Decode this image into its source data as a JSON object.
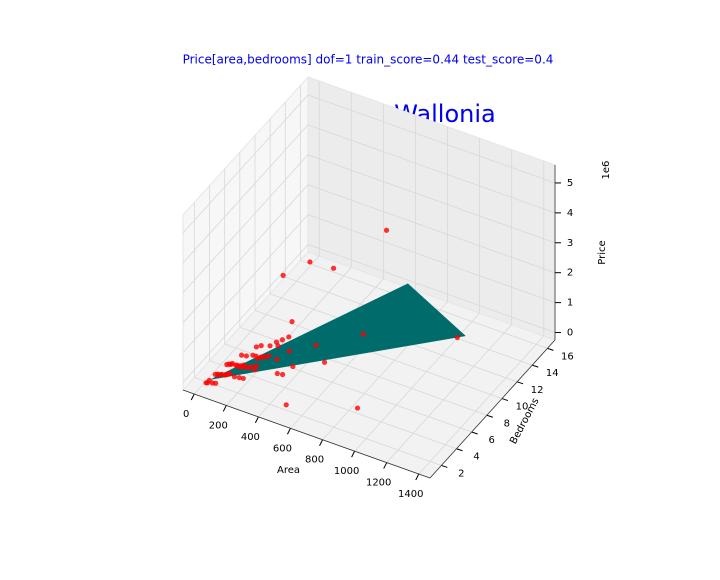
{
  "chart_data": {
    "type": "scatter3d",
    "title": "Price[area,bedrooms]  dof=1  train_score=0.44  test_score=0.4",
    "annotation": "Wallonia",
    "xlabel": "Area",
    "ylabel": "Bedrooms",
    "zlabel": "Price",
    "z_offset_label": "1e6",
    "xlim": [
      -70,
      1470
    ],
    "ylim": [
      0.5,
      17
    ],
    "zlim": [
      -0.25,
      5.6
    ],
    "xticks": [
      0,
      200,
      400,
      600,
      800,
      1000,
      1200,
      1400
    ],
    "yticks": [
      2,
      4,
      6,
      8,
      10,
      12,
      14,
      16
    ],
    "zticks": [
      0,
      1,
      2,
      3,
      4,
      5
    ],
    "grid": true,
    "series": [
      {
        "color": "#ff0000",
        "x": [
          750,
          200,
          320,
          420,
          900,
          1050,
          550,
          480,
          350,
          300,
          260,
          150,
          220,
          180,
          120,
          90,
          60,
          100,
          140,
          170,
          200,
          230,
          260,
          280,
          310,
          130,
          110,
          80,
          70,
          150,
          190,
          210,
          240,
          270,
          300,
          160,
          120,
          95,
          85,
          75,
          180,
          200,
          250,
          330,
          380,
          140,
          160,
          110,
          220,
          260,
          290,
          100,
          130,
          60,
          50,
          175,
          205,
          235,
          400,
          450,
          500,
          600,
          700,
          350
        ],
        "y": [
          10,
          8,
          9,
          10,
          3,
          13,
          1,
          2,
          6,
          5,
          4,
          3,
          3,
          2,
          2,
          1,
          1,
          2,
          3,
          3,
          4,
          4,
          5,
          4,
          5,
          2,
          3,
          2,
          1,
          2,
          3,
          2,
          3,
          3,
          4,
          4,
          3,
          2,
          3,
          2,
          3,
          3,
          4,
          6,
          5,
          2,
          3,
          1,
          4,
          3,
          6,
          3,
          4,
          2,
          1,
          5,
          5,
          2,
          3,
          4,
          6,
          5,
          8,
          4
        ],
        "z": [
          4.0,
          2.0,
          2.4,
          2.1,
          0.3,
          0.15,
          0.3,
          0.9,
          1.3,
          0.8,
          0.5,
          0.3,
          0.35,
          0.25,
          0.2,
          0.15,
          0.1,
          0.18,
          0.28,
          0.32,
          0.45,
          0.4,
          0.6,
          0.55,
          0.7,
          0.22,
          0.25,
          0.12,
          0.2,
          0.3,
          0.38,
          0.28,
          0.42,
          0.5,
          0.62,
          0.35,
          0.3,
          0.16,
          0.2,
          0.14,
          0.3,
          0.33,
          0.48,
          0.75,
          0.65,
          0.26,
          0.27,
          0.18,
          0.46,
          0.36,
          0.58,
          0.24,
          0.32,
          0.1,
          0.08,
          0.4,
          0.5,
          0.3,
          0.5,
          0.55,
          0.8,
          0.7,
          1.0,
          0.6
        ]
      }
    ],
    "surface": {
      "color": "#006b6b",
      "x": [
        80,
        600,
        1100
      ],
      "y": [
        1,
        16,
        13
      ],
      "z": [
        0.25,
        0.25,
        0.3
      ]
    }
  }
}
